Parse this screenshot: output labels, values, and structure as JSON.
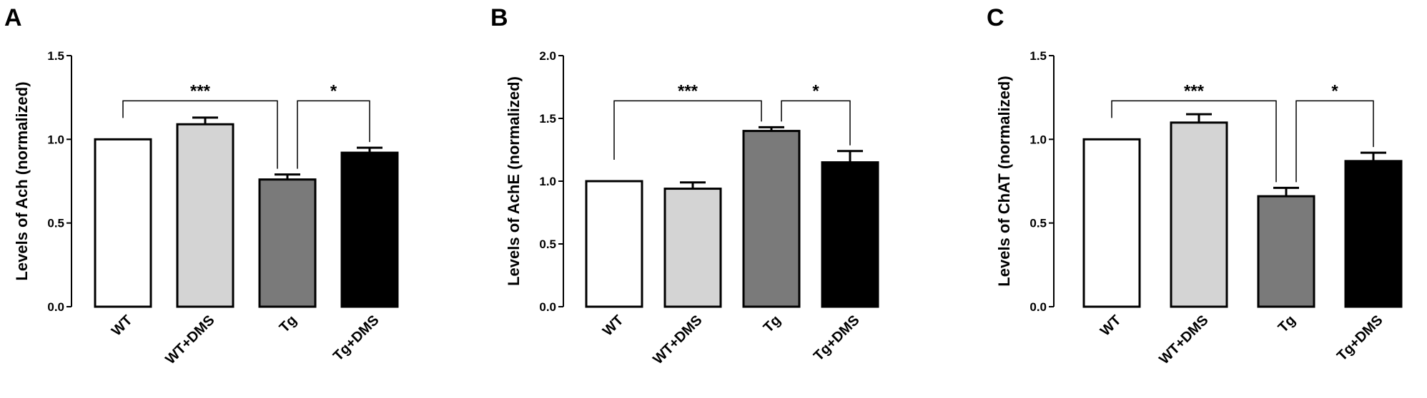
{
  "figure": {
    "panels": [
      "A",
      "B",
      "C"
    ]
  },
  "chart_data": [
    {
      "type": "bar",
      "panel": "A",
      "categories": [
        "WT",
        "WT+DMS",
        "Tg",
        "Tg+DMS"
      ],
      "values": [
        1.0,
        1.09,
        0.76,
        0.92
      ],
      "errors": [
        0.0,
        0.04,
        0.03,
        0.03
      ],
      "colors": [
        "#ffffff",
        "#d4d4d4",
        "#7a7a7a",
        "#000000"
      ],
      "ylabel": "Levels of Ach (normalized)",
      "ylim": [
        0,
        1.5
      ],
      "yticks": [
        0.0,
        0.5,
        1.0,
        1.5
      ],
      "ytick_labels": [
        "0.0",
        "0.5",
        "1.0",
        "1.5"
      ],
      "significance": [
        {
          "from": 0,
          "to": 2,
          "label": "***",
          "level": 1.23
        },
        {
          "from": 2,
          "to": 3,
          "label": "*",
          "level": 1.23
        }
      ]
    },
    {
      "type": "bar",
      "panel": "B",
      "categories": [
        "WT",
        "WT+DMS",
        "Tg",
        "Tg+DMS"
      ],
      "values": [
        1.0,
        0.94,
        1.4,
        1.15
      ],
      "errors": [
        0.0,
        0.05,
        0.03,
        0.09
      ],
      "colors": [
        "#ffffff",
        "#d4d4d4",
        "#7a7a7a",
        "#000000"
      ],
      "ylabel": "Levels of AchE (normalized)",
      "ylim": [
        0,
        2.0
      ],
      "yticks": [
        0.0,
        0.5,
        1.0,
        1.5,
        2.0
      ],
      "ytick_labels": [
        "0.0",
        "0.5",
        "1.0",
        "1.5",
        "2.0"
      ],
      "significance": [
        {
          "from": 0,
          "to": 2,
          "label": "***",
          "level": 1.64
        },
        {
          "from": 2,
          "to": 3,
          "label": "*",
          "level": 1.64
        }
      ]
    },
    {
      "type": "bar",
      "panel": "C",
      "categories": [
        "WT",
        "WT+DMS",
        "Tg",
        "Tg+DMS"
      ],
      "values": [
        1.0,
        1.1,
        0.66,
        0.87
      ],
      "errors": [
        0.0,
        0.05,
        0.05,
        0.05
      ],
      "colors": [
        "#ffffff",
        "#d4d4d4",
        "#7a7a7a",
        "#000000"
      ],
      "ylabel": "Levels of ChAT (normalized)",
      "ylim": [
        0,
        1.5
      ],
      "yticks": [
        0.0,
        0.5,
        1.0,
        1.5
      ],
      "ytick_labels": [
        "0.0",
        "0.5",
        "1.0",
        "1.5"
      ],
      "significance": [
        {
          "from": 0,
          "to": 2,
          "label": "***",
          "level": 1.23
        },
        {
          "from": 2,
          "to": 3,
          "label": "*",
          "level": 1.23
        }
      ]
    }
  ]
}
